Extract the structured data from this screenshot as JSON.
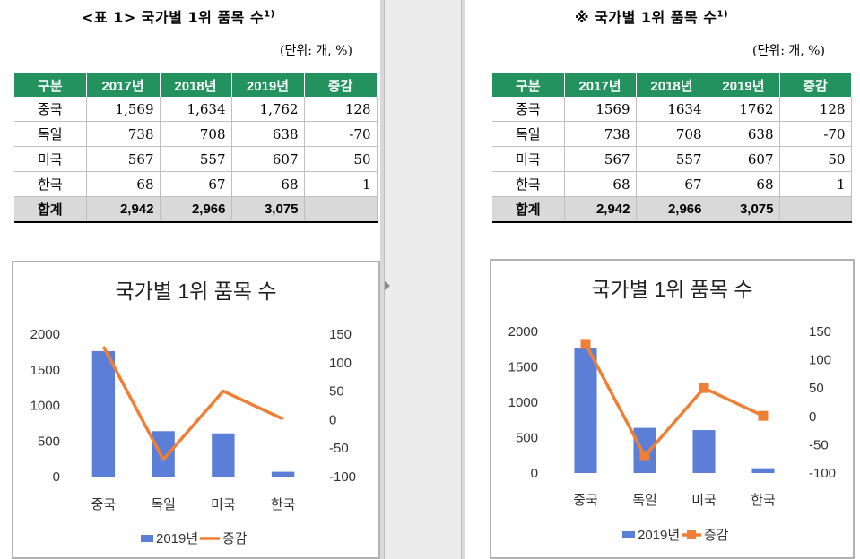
{
  "left": {
    "title": "<표 1> 국가별 1위 품목 수",
    "title_sup": "1)",
    "unit": "(단위: 개, %)",
    "headers": [
      "구분",
      "2017년",
      "2018년",
      "2019년",
      "증감"
    ],
    "rows": [
      [
        "중국",
        "1,569",
        "1,634",
        "1,762",
        "128"
      ],
      [
        "독일",
        "738",
        "708",
        "638",
        "-70"
      ],
      [
        "미국",
        "567",
        "557",
        "607",
        "50"
      ],
      [
        "한국",
        "68",
        "67",
        "68",
        "1"
      ],
      [
        "합계",
        "2,942",
        "2,966",
        "3,075",
        ""
      ]
    ]
  },
  "right": {
    "title": "※ 국가별 1위 품목 수",
    "title_sup": "1)",
    "unit": "(단위: 개, %)",
    "headers": [
      "구분",
      "2017년",
      "2018년",
      "2019년",
      "증감"
    ],
    "rows": [
      [
        "중국",
        "1569",
        "1634",
        "1762",
        "128"
      ],
      [
        "독일",
        "738",
        "708",
        "638",
        "-70"
      ],
      [
        "미국",
        "567",
        "557",
        "607",
        "50"
      ],
      [
        "한국",
        "68",
        "67",
        "68",
        "1"
      ],
      [
        "합계",
        "2,942",
        "2,966",
        "3,075",
        ""
      ]
    ]
  },
  "chart_data": [
    {
      "type": "bar",
      "title": "국가별 1위 품목 수",
      "categories": [
        "중국",
        "독일",
        "미국",
        "한국"
      ],
      "series": [
        {
          "name": "2019년",
          "type": "bar",
          "axis": "left",
          "values": [
            1762,
            638,
            607,
            68
          ],
          "color": "#5b7fd6"
        },
        {
          "name": "증감",
          "type": "line",
          "axis": "right",
          "values": [
            128,
            -70,
            50,
            1
          ],
          "color": "#f07f36",
          "markers": false
        }
      ],
      "ylim": [
        0,
        2000
      ],
      "yticks": [
        0,
        500,
        1000,
        1500,
        2000
      ],
      "y2lim": [
        -100,
        150
      ],
      "y2ticks": [
        150,
        100,
        50,
        0,
        -50,
        -100
      ],
      "legend": "bottom",
      "grid": false
    },
    {
      "type": "bar",
      "title": "국가별 1위 품목 수",
      "categories": [
        "중국",
        "독일",
        "미국",
        "한국"
      ],
      "series": [
        {
          "name": "2019년",
          "type": "bar",
          "axis": "left",
          "values": [
            1762,
            638,
            607,
            68
          ],
          "color": "#5b7fd6"
        },
        {
          "name": "증감",
          "type": "line",
          "axis": "right",
          "values": [
            128,
            -70,
            50,
            1
          ],
          "color": "#f07f36",
          "markers": true
        }
      ],
      "ylim": [
        0,
        2000
      ],
      "yticks": [
        0,
        500,
        1000,
        1500,
        2000
      ],
      "y2lim": [
        -100,
        150
      ],
      "y2ticks": [
        150,
        100,
        50,
        0,
        -50,
        -100
      ],
      "legend": "bottom",
      "grid": false
    }
  ]
}
